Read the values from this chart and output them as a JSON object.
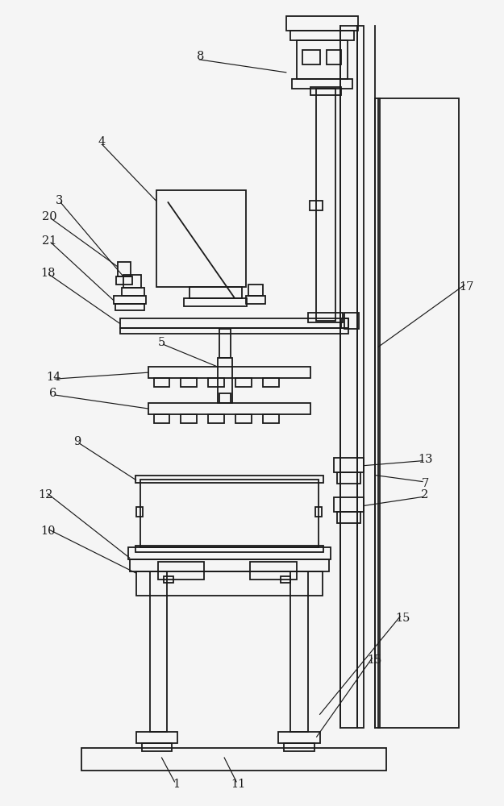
{
  "bg_color": "#f5f5f5",
  "lc": "#1a1a1a",
  "lw": 1.3
}
